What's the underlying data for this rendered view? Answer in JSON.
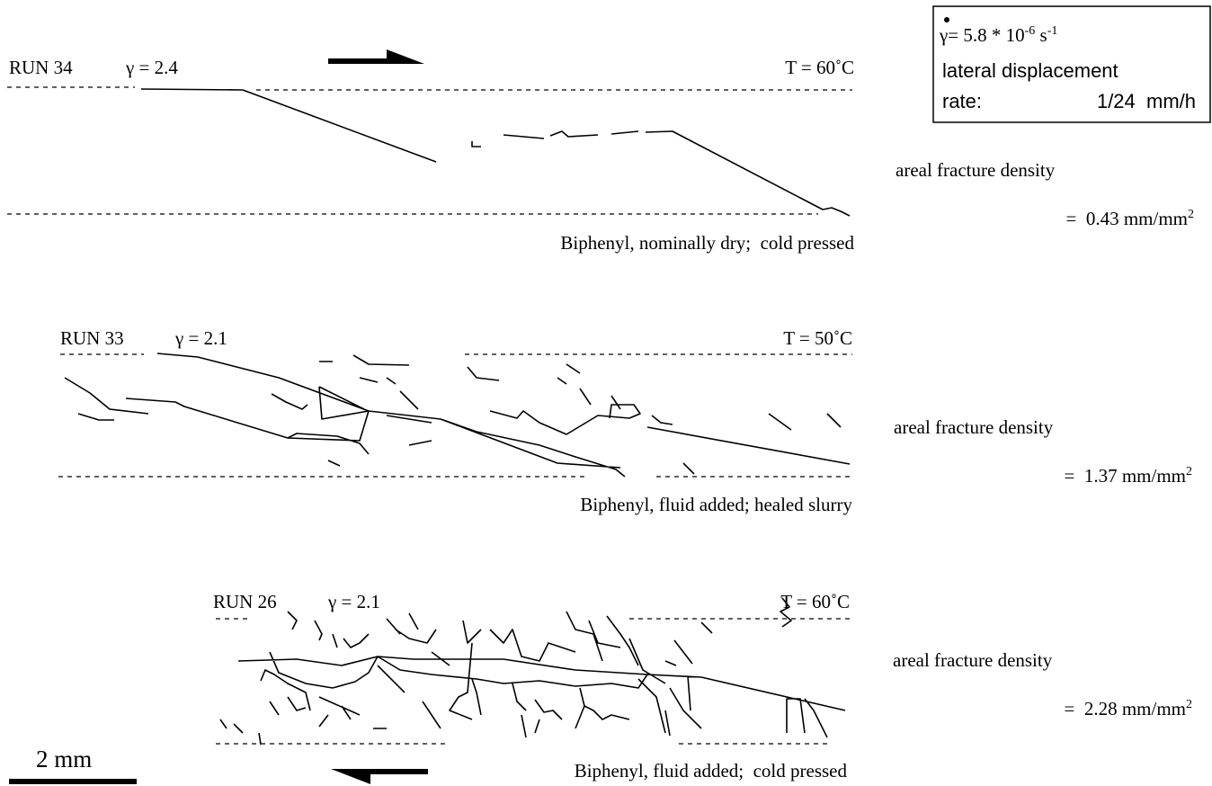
{
  "legend_box": {
    "rate_symbol": "γ",
    "rate_text": "= 5.8 * 10",
    "rate_exp": "-6",
    "rate_unit": " s",
    "rate_unit_exp": "-1",
    "line2": "lateral displacement",
    "line3_label": "rate:",
    "line3_value": "1/24  mm/h"
  },
  "panels": [
    {
      "run": "RUN 34",
      "gamma": "γ = 2.4",
      "temperature": "T = 60˚C",
      "caption": "Biphenyl, nominally dry;  cold pressed",
      "density_label": "areal fracture density",
      "density_value": "=  0.43 mm/mm",
      "density_exp": "2"
    },
    {
      "run": "RUN 33",
      "gamma": "γ = 2.1",
      "temperature": "T = 50˚C",
      "caption": "Biphenyl, fluid added; healed slurry",
      "density_label": "areal fracture density",
      "density_value": "=  1.37 mm/mm",
      "density_exp": "2"
    },
    {
      "run": "RUN 26",
      "gamma": "γ = 2.1",
      "temperature": "T = 60˚C",
      "caption": "Biphenyl, fluid added;  cold pressed",
      "density_label": "areal fracture density",
      "density_value": "=  2.28 mm/mm",
      "density_exp": "2"
    }
  ],
  "scale_bar": "2 mm"
}
